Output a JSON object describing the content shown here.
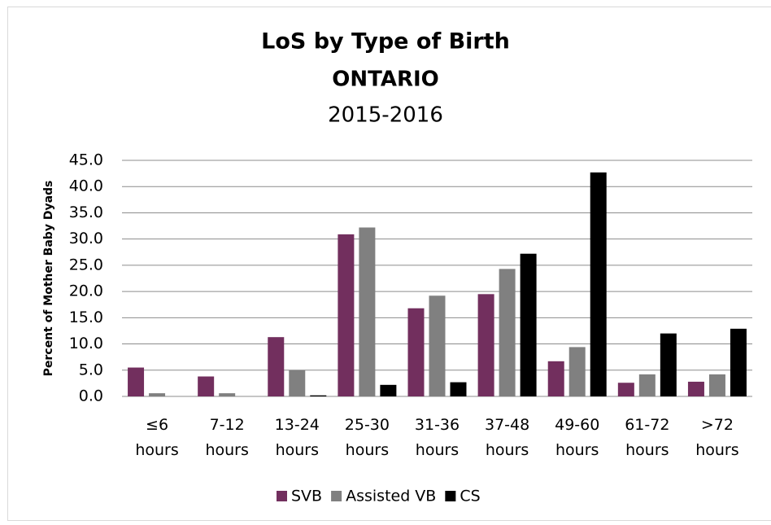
{
  "chart_data": {
    "type": "bar",
    "title": "LoS by Type of Birth",
    "subtitle": "ONTARIO",
    "period": "2015-2016",
    "title_color": "#722f5e",
    "y_label": "Percent of Mother Baby Dyads",
    "categories": [
      "≤6 hours",
      "7-12 hours",
      "13-24 hours",
      "25-30 hours",
      "31-36 hours",
      "37-48 hours",
      "49-60 hours",
      "61-72 hours",
      ">72 hours"
    ],
    "series": [
      {
        "name": "SVB",
        "color": "#722f5e",
        "values": [
          5.5,
          3.8,
          11.3,
          30.9,
          16.8,
          19.5,
          6.7,
          2.6,
          2.8
        ]
      },
      {
        "name": "Assisted VB",
        "color": "#808080",
        "values": [
          0.6,
          0.6,
          5.0,
          32.2,
          19.2,
          24.3,
          9.4,
          4.2,
          4.2
        ]
      },
      {
        "name": "CS",
        "color": "#000000",
        "values": [
          0.0,
          0.0,
          0.2,
          2.2,
          2.7,
          27.2,
          42.7,
          12.0,
          12.9
        ]
      }
    ],
    "ylim": [
      0,
      45
    ],
    "yticks": [
      {
        "value": 0,
        "label": "0.0"
      },
      {
        "value": 5,
        "label": "5.0"
      },
      {
        "value": 10,
        "label": "10.0"
      },
      {
        "value": 15,
        "label": "15.0"
      },
      {
        "value": 20,
        "label": "20.0"
      },
      {
        "value": 25,
        "label": "25.0"
      },
      {
        "value": 30,
        "label": "30.0"
      },
      {
        "value": 35,
        "label": "35.0"
      },
      {
        "value": 40,
        "label": "40.0"
      },
      {
        "value": 45,
        "label": "45.0"
      }
    ],
    "grid": true,
    "legend": "bottom"
  }
}
